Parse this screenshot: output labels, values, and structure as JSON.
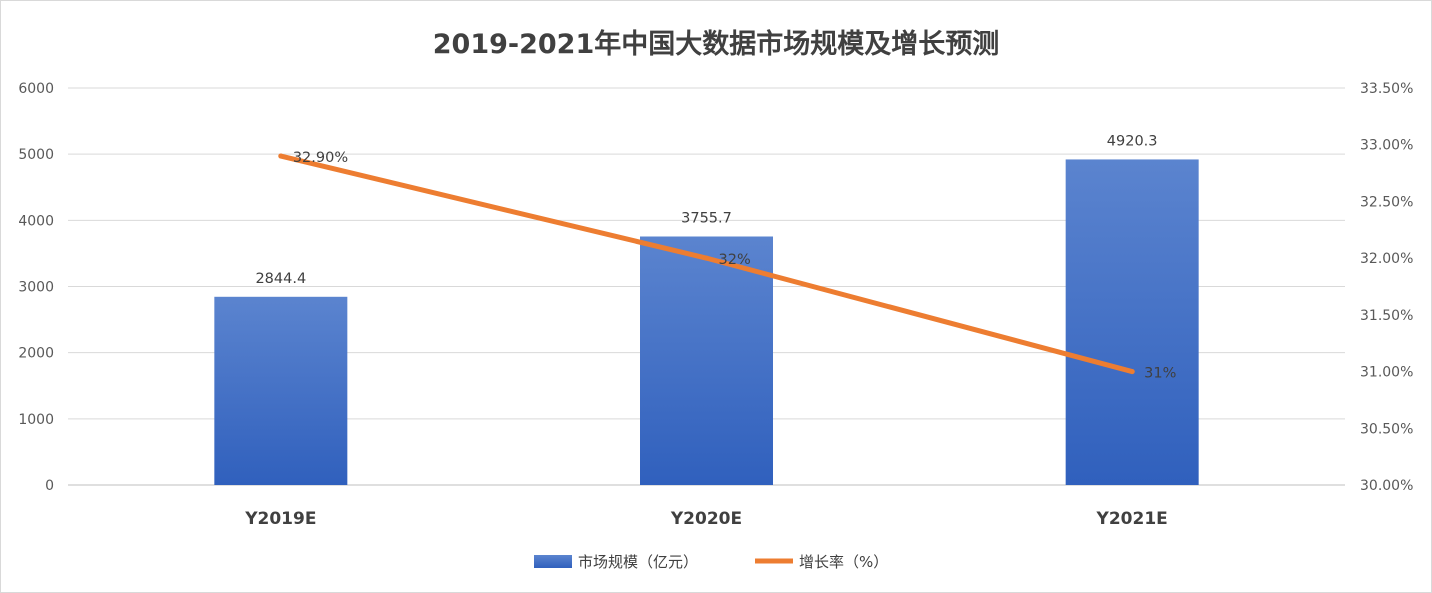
{
  "chart_data": {
    "type": "bar",
    "title": "2019-2021年中国大数据市场规模及增长预测",
    "categories": [
      "Y2019E",
      "Y2020E",
      "Y2021E"
    ],
    "series": [
      {
        "name": "市场规模（亿元）",
        "type": "bar",
        "axis": "left",
        "values": [
          2844.4,
          3755.7,
          4920.3
        ],
        "labels": [
          "2844.4",
          "3755.7",
          "4920.3"
        ],
        "color": "#4472c4"
      },
      {
        "name": "增长率（%）",
        "type": "line",
        "axis": "right",
        "values": [
          32.9,
          32.0,
          31.0
        ],
        "labels": [
          "32.90%",
          "32%",
          "31%"
        ],
        "color": "#ed7d31"
      }
    ],
    "y_left": {
      "ylim": [
        0,
        6000
      ],
      "ticks": [
        "0",
        "1000",
        "2000",
        "3000",
        "4000",
        "5000",
        "6000"
      ]
    },
    "y_right": {
      "ylim": [
        30.0,
        33.5
      ],
      "ticks": [
        "30.00%",
        "30.50%",
        "31.00%",
        "31.50%",
        "32.00%",
        "32.50%",
        "33.00%",
        "33.50%"
      ]
    },
    "grid": true,
    "legend": "bottom"
  }
}
